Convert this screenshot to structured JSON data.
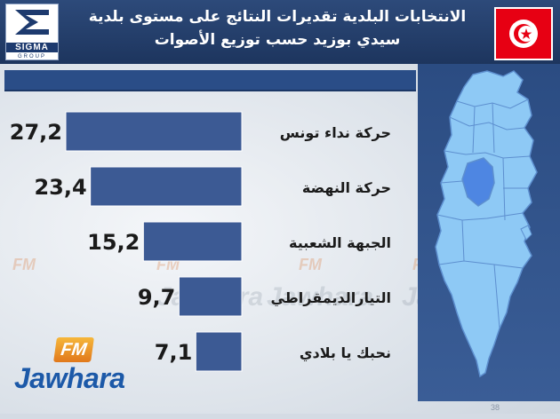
{
  "header": {
    "title": "الانتخابات البلدية تقديرات النتائج على مستوى بلدية سيدي بوزيد حسب توزيع الأصوات",
    "logo_text": "SIGMA",
    "logo_sub": "GROUP"
  },
  "colors": {
    "bar": "#3c5a94",
    "header": "#2d4a7a",
    "map_fill": "#8ec9f5",
    "map_highlight": "#4e86e2",
    "flag": "#e70013"
  },
  "branding": {
    "fm_label": "FM",
    "jawhara_label": "Jawhara",
    "watermark": "Jawhara"
  },
  "page_number": "38",
  "chart_data": {
    "type": "bar",
    "orientation": "horizontal",
    "title": "",
    "xlabel": "",
    "ylabel": "",
    "categories": [
      "حركة نداء تونس",
      "حركة النهضة",
      "الجبهة الشعبية",
      "التيارالديمقراطي",
      "نحبك يا بلادي"
    ],
    "values": [
      27.2,
      23.4,
      15.2,
      9.7,
      7.1
    ],
    "value_labels": [
      "27,2",
      "23,4",
      "15,2",
      "9,7",
      "7,1"
    ],
    "xlim": [
      0,
      27.2
    ],
    "grid": false,
    "legend": "none"
  }
}
